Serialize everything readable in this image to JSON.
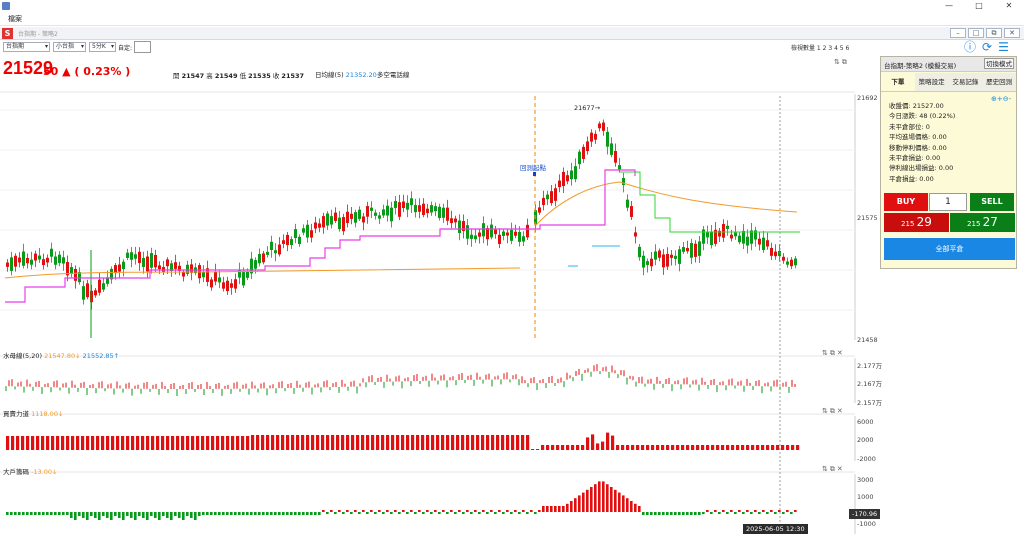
{
  "window": {
    "title": "檔案",
    "menu": "檔案",
    "inner_title": "台指期 - 策略2",
    "buttons": [
      "—",
      "□",
      "✕"
    ]
  },
  "toolbar": {
    "product": "台指期",
    "contract": "小台指",
    "period": "5分K",
    "custom_label": "自定:",
    "view_count": "檢視數量 1 2 3 4 5 6"
  },
  "quote": {
    "price": "21529",
    "change": "50 ▲ ( 0.23% )",
    "open_label": "開",
    "open": "21547",
    "high_label": "高",
    "high": "21549",
    "low_label": "低",
    "low": "21535",
    "close_label": "收",
    "close": "21537",
    "line_label": "日均線(5)",
    "line_value": "21352.20",
    "line_suffix": "多空電話線"
  },
  "price_axis": {
    "top": "21692",
    "mid": "21575",
    "bottom": "21458"
  },
  "annotations": {
    "high": "21677→",
    "backtest": "回測起點"
  },
  "panes": [
    {
      "name": "水母線(5,20)",
      "v1": "21547.80↓",
      "v2": "21552.85↑",
      "axis": [
        "2.177万",
        "2.167万",
        "2.157万"
      ]
    },
    {
      "name": "買賣力道",
      "v1": "1118.00↓",
      "axis": [
        "6000",
        "2000",
        "-2000"
      ]
    },
    {
      "name": "大戶籌碼",
      "v1": "-13.00↓",
      "axis": [
        "3000",
        "1000",
        "-1000"
      ]
    }
  ],
  "chip_tag": "-170.96",
  "time_label": "2025-06-05  12:30",
  "order_panel": {
    "title": "台指期-策略2 (模擬交易)",
    "mode_button": "切換模式",
    "tabs": [
      "下單",
      "策略設定",
      "交易記錄",
      "歷史回測"
    ],
    "info": [
      "收盤價: 21527.00",
      "今日漲跌: 48 (0.22%)",
      "未平倉部位: 0",
      "平均進場價格: 0.00",
      "移動停利價格: 0.00",
      "未平倉損益: 0.00",
      "停利線出場損益: 0.00",
      "平倉損益: 0.00"
    ],
    "buy": "BUY",
    "sell": "SELL",
    "qty": "1",
    "bid_prefix": "215",
    "bid": "29",
    "ask_prefix": "215",
    "ask": "27",
    "close_all": "全部平倉"
  },
  "colors": {
    "up": "#e01010",
    "down": "#0a9a1a",
    "orange": "#f39a2b",
    "magenta": "#e83ee8",
    "green_line": "#2fd52f",
    "accent": "#1b87e5"
  }
}
